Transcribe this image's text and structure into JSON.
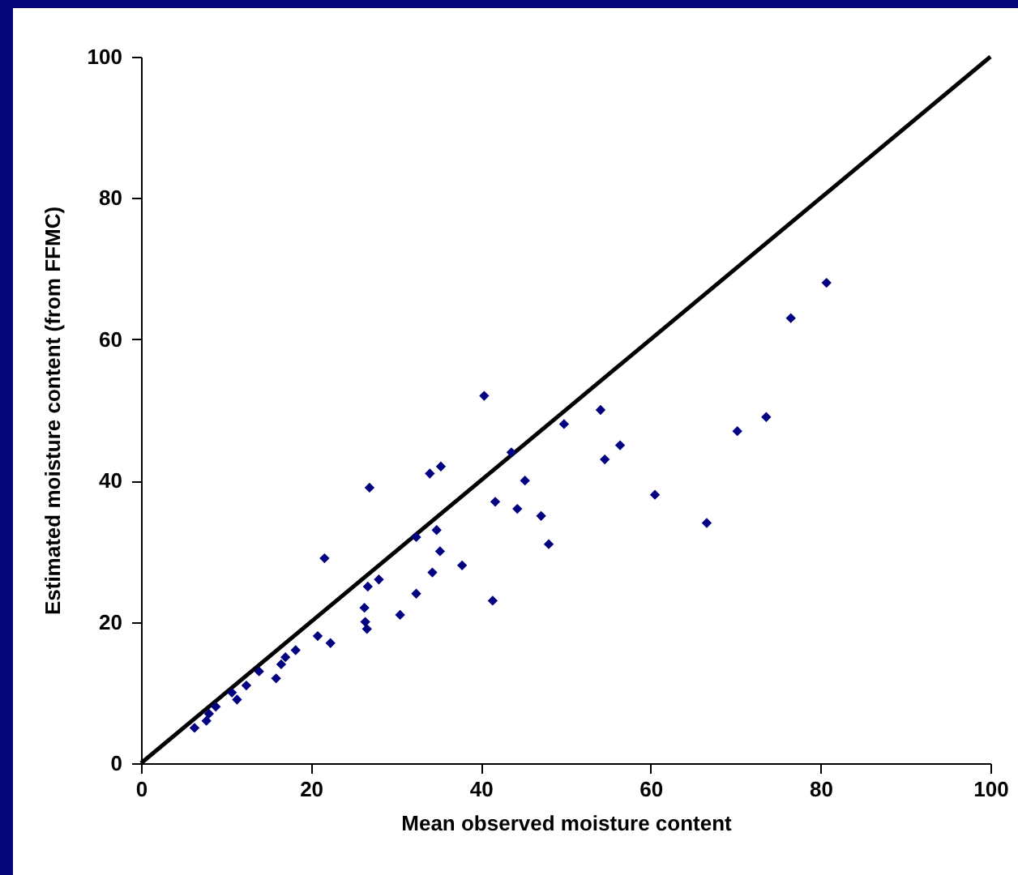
{
  "chart_data": {
    "type": "scatter",
    "xlabel": "Mean observed moisture content",
    "ylabel": "Estimated moisture content (from FFMC)",
    "xlim": [
      0,
      100
    ],
    "xticks": [
      0,
      20,
      40,
      60,
      80,
      100
    ],
    "ylim": [
      0,
      100
    ],
    "yticks": [
      0,
      20,
      40,
      60,
      80,
      100
    ],
    "grid": false,
    "series": [
      {
        "color": "#000080",
        "marker": "diamond",
        "x": [
          6.3,
          7.7,
          8,
          8.8,
          10.7,
          11.3,
          12.4,
          13.9,
          15.9,
          16.5,
          17,
          18.2,
          20.8,
          21.6,
          22.3,
          26.3,
          26.4,
          26.6,
          26.7,
          26.9,
          28,
          30.5,
          32.4,
          32.4,
          34,
          34.3,
          34.8,
          35.2,
          35.3,
          37.8,
          40.4,
          41.4,
          41.7,
          43.6,
          44.3,
          45.2,
          47.1,
          48,
          49.8,
          54.1,
          54.6,
          56.4,
          60.5,
          66.6,
          70.2,
          73.6,
          76.5,
          80.7
        ],
        "values": [
          5,
          6,
          7,
          8,
          10,
          9,
          11,
          13,
          12,
          14,
          15,
          16,
          18,
          29,
          17,
          22,
          20,
          19,
          25,
          39,
          26,
          21,
          32,
          24,
          41,
          27,
          33,
          30,
          42,
          28,
          52,
          23,
          37,
          44,
          36,
          40,
          35,
          31,
          48,
          50,
          43,
          45,
          38,
          34,
          47,
          49,
          63,
          68
        ]
      },
      {
        "type": "line",
        "color": "#000000",
        "line_style": "solid",
        "x": [
          0,
          100
        ],
        "values": [
          0,
          100
        ]
      }
    ]
  }
}
